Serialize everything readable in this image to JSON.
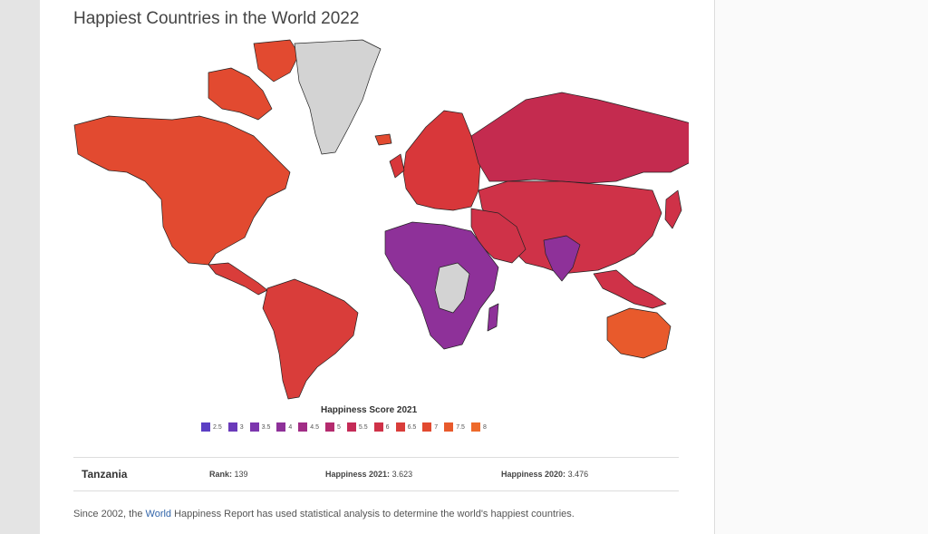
{
  "title": "Happiest Countries in the World 2022",
  "legend": {
    "title": "Happiness Score 2021",
    "items": [
      {
        "label": "2.5",
        "color": "#5b3fc4"
      },
      {
        "label": "3",
        "color": "#6a3aba"
      },
      {
        "label": "3.5",
        "color": "#7c36ae"
      },
      {
        "label": "4",
        "color": "#8e3199"
      },
      {
        "label": "4.5",
        "color": "#a12d86"
      },
      {
        "label": "5",
        "color": "#b42b6e"
      },
      {
        "label": "5.5",
        "color": "#c42b57"
      },
      {
        "label": "6",
        "color": "#cf3248"
      },
      {
        "label": "6.5",
        "color": "#d93d3a"
      },
      {
        "label": "7",
        "color": "#e24a30"
      },
      {
        "label": "7.5",
        "color": "#e85a2c"
      },
      {
        "label": "8",
        "color": "#ee6a2b"
      }
    ]
  },
  "info": {
    "country": "Tanzania",
    "rank_label": "Rank:",
    "rank_value": "139",
    "h2021_label": "Happiness 2021:",
    "h2021_value": "3.623",
    "h2020_label": "Happiness 2020:",
    "h2020_value": "3.476"
  },
  "footer": {
    "before": "Since 2002, the ",
    "link": "World",
    "after": " Happiness Report has used statistical analysis to determine the world's happiest countries."
  },
  "colors": {
    "no_data": "#d3d3d3",
    "north_america": "#e24a30",
    "south_america": "#d93d3a",
    "europe": "#d8373a",
    "russia": "#c42b4f",
    "asia": "#cf3248",
    "africa": "#8e3199",
    "oceania": "#e85a2c"
  }
}
